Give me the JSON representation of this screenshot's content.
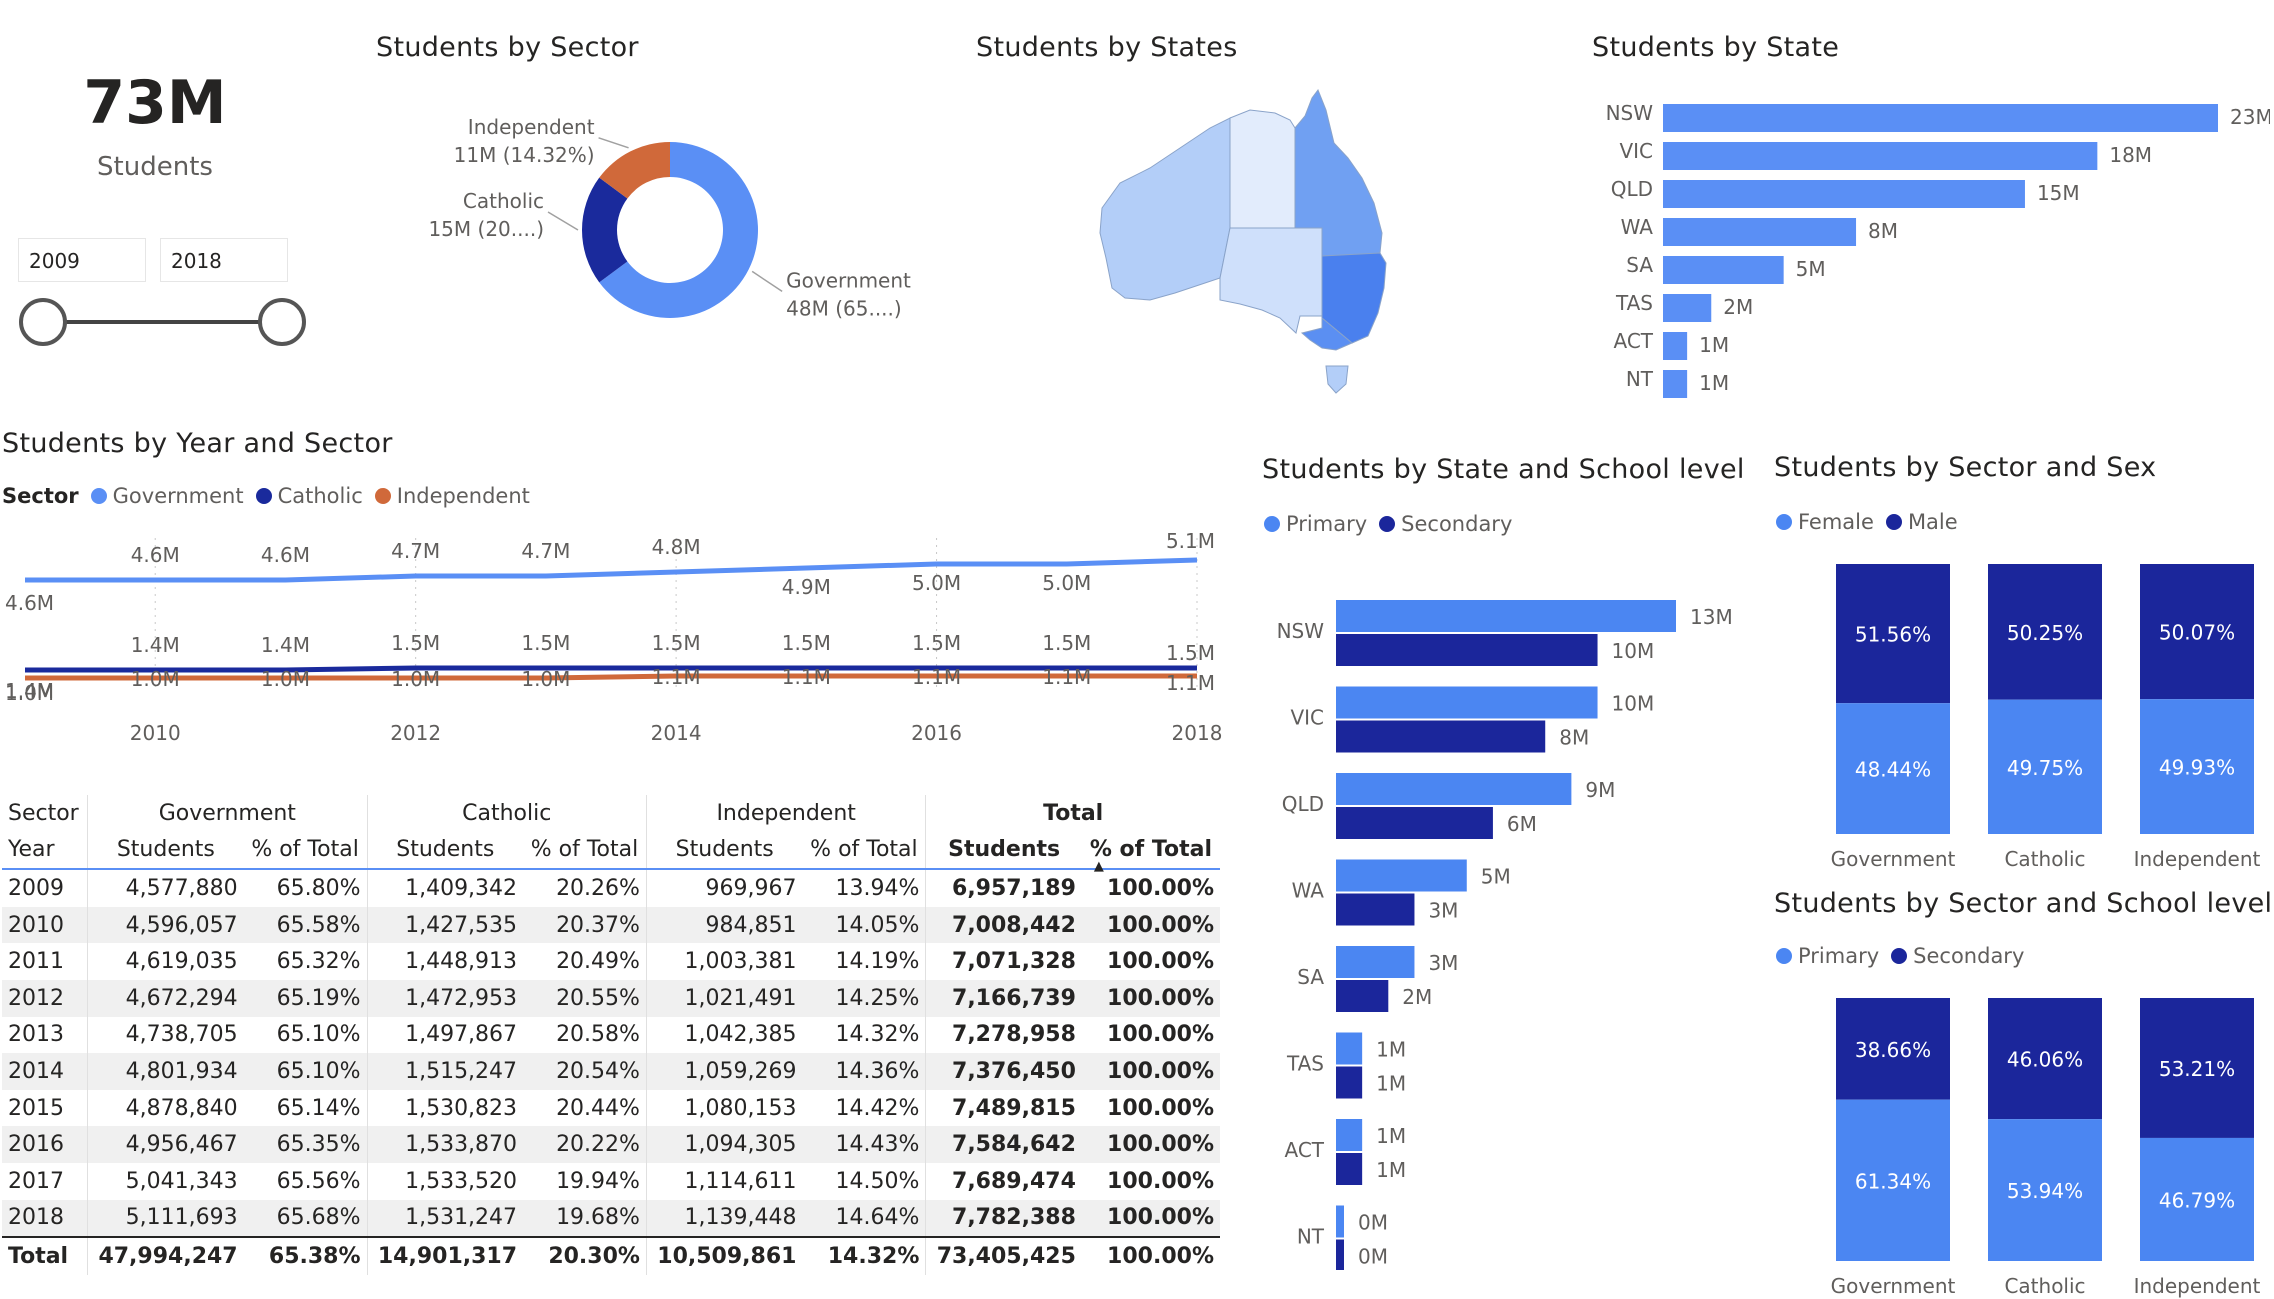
{
  "colors": {
    "government": "#5a8ff5",
    "catholic": "#1a2a9c",
    "independent": "#d0693a",
    "primary": "#4b86f2",
    "secondary": "#1b269b",
    "female": "#4b86f2",
    "male": "#1b269b"
  },
  "kpi": {
    "value": "73M",
    "label": "Students"
  },
  "slicer": {
    "start": "2009",
    "end": "2018"
  },
  "titles": {
    "sector": "Students by Sector",
    "states_map": "Students by States",
    "state": "Students by State",
    "year_sector": "Students by Year and Sector",
    "state_level": "Students by State and School level",
    "sector_sex": "Students by Sector and Sex",
    "sector_level": "Students by Sector and School level"
  },
  "legends": {
    "sector_title": "Sector",
    "government": "Government",
    "catholic": "Catholic",
    "independent": "Independent",
    "primary": "Primary",
    "secondary": "Secondary",
    "female": "Female",
    "male": "Male"
  },
  "chart_data": [
    {
      "id": "donut",
      "type": "pie",
      "title": "Students by Sector",
      "slices": [
        {
          "name": "Government",
          "value": 48,
          "label1": "Government",
          "label2": "48M (65....)"
        },
        {
          "name": "Catholic",
          "value": 15,
          "label1": "Catholic",
          "label2": "15M (20....)"
        },
        {
          "name": "Independent",
          "value": 11,
          "label1": "Independent",
          "label2": "11M (14.32%)"
        }
      ]
    },
    {
      "id": "state_bar",
      "type": "bar",
      "title": "Students by State",
      "categories": [
        "NSW",
        "VIC",
        "QLD",
        "WA",
        "SA",
        "TAS",
        "ACT",
        "NT"
      ],
      "values": [
        23,
        18,
        15,
        8,
        5,
        2,
        1,
        1
      ],
      "labels": [
        "23M",
        "18M",
        "15M",
        "8M",
        "5M",
        "2M",
        "1M",
        "1M"
      ]
    },
    {
      "id": "year_line",
      "type": "line",
      "title": "Students by Year and Sector",
      "x": [
        2009,
        2010,
        2011,
        2012,
        2013,
        2014,
        2015,
        2016,
        2017,
        2018
      ],
      "xticks": [
        "2010",
        "2012",
        "2014",
        "2016",
        "2018"
      ],
      "series": [
        {
          "name": "Government",
          "values": [
            4.6,
            4.6,
            4.6,
            4.7,
            4.7,
            4.8,
            4.9,
            5.0,
            5.0,
            5.1
          ],
          "labels": [
            "4.6M",
            "4.6M",
            "4.6M",
            "4.7M",
            "4.7M",
            "4.8M",
            "4.9M",
            "5.0M",
            "5.0M",
            "5.1M"
          ]
        },
        {
          "name": "Catholic",
          "values": [
            1.4,
            1.4,
            1.4,
            1.5,
            1.5,
            1.5,
            1.5,
            1.5,
            1.5,
            1.5
          ],
          "labels": [
            "1.4M",
            "1.4M",
            "1.4M",
            "1.5M",
            "1.5M",
            "1.5M",
            "1.5M",
            "1.5M",
            "1.5M",
            "1.5M"
          ]
        },
        {
          "name": "Independent",
          "values": [
            1.0,
            1.0,
            1.0,
            1.0,
            1.0,
            1.1,
            1.1,
            1.1,
            1.1,
            1.1
          ],
          "labels": [
            "1.0M",
            "1.0M",
            "1.0M",
            "1.0M",
            "1.0M",
            "1.1M",
            "1.1M",
            "1.1M",
            "1.1M",
            "1.1M"
          ]
        }
      ]
    },
    {
      "id": "state_level",
      "type": "bar",
      "title": "Students by State and School level",
      "categories": [
        "NSW",
        "VIC",
        "QLD",
        "WA",
        "SA",
        "TAS",
        "ACT",
        "NT"
      ],
      "series": [
        {
          "name": "Primary",
          "values": [
            13,
            10,
            9,
            5,
            3,
            1,
            1,
            0
          ],
          "labels": [
            "13M",
            "10M",
            "9M",
            "5M",
            "3M",
            "1M",
            "1M",
            "0M"
          ]
        },
        {
          "name": "Secondary",
          "values": [
            10,
            8,
            6,
            3,
            2,
            1,
            1,
            0
          ],
          "labels": [
            "10M",
            "8M",
            "6M",
            "3M",
            "2M",
            "1M",
            "1M",
            "0M"
          ]
        }
      ]
    },
    {
      "id": "sector_sex",
      "type": "bar",
      "title": "Students by Sector and Sex",
      "categories": [
        "Government",
        "Catholic",
        "Independent"
      ],
      "series": [
        {
          "name": "Female",
          "values": [
            48.44,
            49.75,
            49.93
          ],
          "labels": [
            "48.44%",
            "49.75%",
            "49.93%"
          ]
        },
        {
          "name": "Male",
          "values": [
            51.56,
            50.25,
            50.07
          ],
          "labels": [
            "51.56%",
            "50.25%",
            "50.07%"
          ]
        }
      ]
    },
    {
      "id": "sector_level",
      "type": "bar",
      "title": "Students by Sector and School level",
      "categories": [
        "Government",
        "Catholic",
        "Independent"
      ],
      "series": [
        {
          "name": "Primary",
          "values": [
            61.34,
            53.94,
            46.79
          ],
          "labels": [
            "61.34%",
            "53.94%",
            "46.79%"
          ]
        },
        {
          "name": "Secondary",
          "values": [
            38.66,
            46.06,
            53.21
          ],
          "labels": [
            "38.66%",
            "46.06%",
            "53.21%"
          ]
        }
      ]
    },
    {
      "id": "map",
      "type": "heatmap",
      "title": "Students by States",
      "regions": [
        "WA",
        "NT",
        "QLD",
        "SA",
        "NSW",
        "VIC",
        "TAS"
      ]
    }
  ],
  "matrix": {
    "header_sector": "Sector",
    "header_year": "Year",
    "groups": [
      "Government",
      "Catholic",
      "Independent",
      "Total"
    ],
    "sub_students": "Students",
    "sub_pct": "% of Total",
    "rows": [
      [
        "2009",
        "4,577,880",
        "65.80%",
        "1,409,342",
        "20.26%",
        "969,967",
        "13.94%",
        "6,957,189",
        "100.00%"
      ],
      [
        "2010",
        "4,596,057",
        "65.58%",
        "1,427,535",
        "20.37%",
        "984,851",
        "14.05%",
        "7,008,442",
        "100.00%"
      ],
      [
        "2011",
        "4,619,035",
        "65.32%",
        "1,448,913",
        "20.49%",
        "1,003,381",
        "14.19%",
        "7,071,328",
        "100.00%"
      ],
      [
        "2012",
        "4,672,294",
        "65.19%",
        "1,472,953",
        "20.55%",
        "1,021,491",
        "14.25%",
        "7,166,739",
        "100.00%"
      ],
      [
        "2013",
        "4,738,705",
        "65.10%",
        "1,497,867",
        "20.58%",
        "1,042,385",
        "14.32%",
        "7,278,958",
        "100.00%"
      ],
      [
        "2014",
        "4,801,934",
        "65.10%",
        "1,515,247",
        "20.54%",
        "1,059,269",
        "14.36%",
        "7,376,450",
        "100.00%"
      ],
      [
        "2015",
        "4,878,840",
        "65.14%",
        "1,530,823",
        "20.44%",
        "1,080,153",
        "14.42%",
        "7,489,815",
        "100.00%"
      ],
      [
        "2016",
        "4,956,467",
        "65.35%",
        "1,533,870",
        "20.22%",
        "1,094,305",
        "14.43%",
        "7,584,642",
        "100.00%"
      ],
      [
        "2017",
        "5,041,343",
        "65.56%",
        "1,533,520",
        "19.94%",
        "1,114,611",
        "14.50%",
        "7,689,474",
        "100.00%"
      ],
      [
        "2018",
        "5,111,693",
        "65.68%",
        "1,531,247",
        "19.68%",
        "1,139,448",
        "14.64%",
        "7,782,388",
        "100.00%"
      ]
    ],
    "total": [
      "Total",
      "47,994,247",
      "65.38%",
      "14,901,317",
      "20.30%",
      "10,509,861",
      "14.32%",
      "73,405,425",
      "100.00%"
    ]
  }
}
